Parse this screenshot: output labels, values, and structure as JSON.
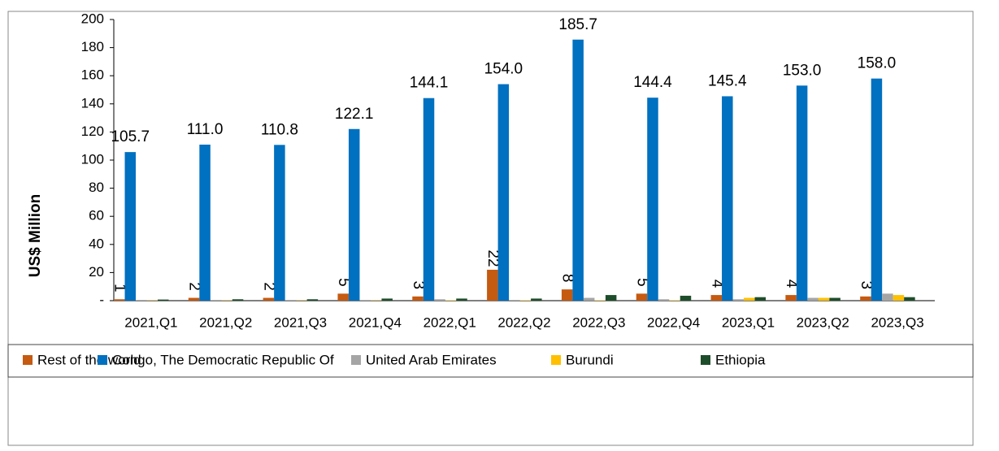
{
  "chart_data": {
    "type": "bar",
    "ylabel": "US$ Million",
    "categories": [
      "2021,Q1",
      "2021,Q2",
      "2021,Q3",
      "2021,Q4",
      "2022,Q1",
      "2022,Q2",
      "2022,Q3",
      "2022,Q4",
      "2023,Q1",
      "2023,Q2",
      "2023,Q3"
    ],
    "series": [
      {
        "name": "Rest of the world",
        "color": "#c55a11",
        "values": [
          1,
          2,
          2,
          5,
          3,
          22,
          8,
          5,
          4,
          4,
          3
        ]
      },
      {
        "name": "Congo, The Democratic Republic Of",
        "color": "#0070c0",
        "values": [
          105.7,
          111,
          110.8,
          122.1,
          144.1,
          154,
          185.7,
          144.4,
          145.4,
          153,
          158
        ],
        "value_labels": [
          "105.7",
          "111.0",
          "110.8",
          "122.1",
          "144.1",
          "154.0",
          "185.7",
          "144.4",
          "145.4",
          "153.0",
          "158.0"
        ]
      },
      {
        "name": "United Arab Emirates",
        "color": "#a5a5a5",
        "values": [
          0.5,
          0.5,
          0.5,
          0.5,
          1,
          0.5,
          2,
          1,
          1,
          2,
          5
        ]
      },
      {
        "name": "Burundi",
        "color": "#ffc000",
        "values": [
          0.2,
          0.2,
          0.2,
          0.2,
          0.3,
          0.3,
          0.3,
          0.3,
          2,
          2,
          4
        ]
      },
      {
        "name": "Ethiopia",
        "color": "#1e4d2b",
        "values": [
          0.8,
          1,
          1,
          1.5,
          1.5,
          1.5,
          4,
          3.5,
          2.5,
          2,
          2.5
        ]
      }
    ],
    "ylim": [
      0,
      200
    ],
    "yticks": [
      {
        "value": 0,
        "label": "-"
      },
      20,
      40,
      60,
      80,
      100,
      120,
      140,
      160,
      180,
      200
    ],
    "legend": "bottom"
  }
}
